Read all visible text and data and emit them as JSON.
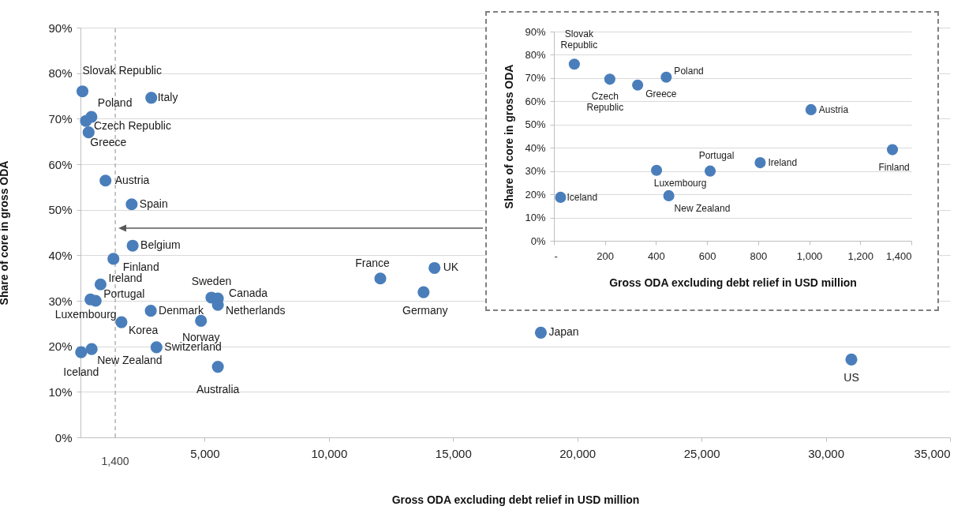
{
  "chart_data": [
    {
      "type": "scatter",
      "xlabel": "Gross ODA excluding debt relief in USD million",
      "ylabel": "Share of core in gross ODA",
      "xlim": [
        0,
        35000
      ],
      "xticks": [
        {
          "value": 5000,
          "label": "5,000"
        },
        {
          "value": 10000,
          "label": "10,000"
        },
        {
          "value": 15000,
          "label": "15,000"
        },
        {
          "value": 20000,
          "label": "20,000"
        },
        {
          "value": 25000,
          "label": "25,000"
        },
        {
          "value": 30000,
          "label": "30,000"
        },
        {
          "value": 35000,
          "label": "35,000"
        }
      ],
      "ylim": [
        0,
        90
      ],
      "yticks": [
        {
          "value": 0,
          "label": "0%"
        },
        {
          "value": 10,
          "label": "10%"
        },
        {
          "value": 20,
          "label": "20%"
        },
        {
          "value": 30,
          "label": "30%"
        },
        {
          "value": 40,
          "label": "40%"
        },
        {
          "value": 50,
          "label": "50%"
        },
        {
          "value": 60,
          "label": "60%"
        },
        {
          "value": 70,
          "label": "70%"
        },
        {
          "value": 80,
          "label": "80%"
        },
        {
          "value": 90,
          "label": "90%"
        }
      ],
      "grid": "y",
      "marker": "circle",
      "series": [
        {
          "color": "#4a7ebb",
          "x": [
            80,
            219,
            328,
            440,
            1007,
            1326,
            808,
            612,
            402,
            450,
            26,
            2850,
            2060,
            2100,
            1650,
            2830,
            3060,
            5270,
            5530,
            5530,
            4850,
            5530,
            12070,
            14250,
            13810,
            18530,
            31030
          ],
          "values": [
            76.0,
            69.5,
            67.0,
            70.4,
            56.4,
            39.2,
            33.6,
            30.0,
            30.3,
            19.4,
            18.7,
            74.6,
            51.2,
            42.1,
            25.3,
            27.8,
            19.8,
            30.7,
            30.5,
            29.1,
            25.6,
            15.5,
            34.9,
            37.2,
            31.9,
            23.0,
            17.1
          ]
        }
      ],
      "ref_lines": [
        {
          "axis": "x",
          "value": 1400,
          "label": "1,400",
          "line_style": "dashed",
          "color": "#a6a6a6"
        }
      ],
      "annotations": [
        {
          "text": "Slovak Republic",
          "x": 80,
          "y": 76.0
        },
        {
          "text": "Czech Republic",
          "x": 219,
          "y": 69.5
        },
        {
          "text": "Greece",
          "x": 328,
          "y": 67.0
        },
        {
          "text": "Poland",
          "x": 440,
          "y": 70.4
        },
        {
          "text": "Austria",
          "x": 1007,
          "y": 56.4
        },
        {
          "text": "Finland",
          "x": 1326,
          "y": 39.2
        },
        {
          "text": "Ireland",
          "x": 808,
          "y": 33.6
        },
        {
          "text": "Portugal",
          "x": 612,
          "y": 30.0
        },
        {
          "text": "Luxembourg",
          "x": 402,
          "y": 30.3
        },
        {
          "text": "New Zealand",
          "x": 450,
          "y": 19.4
        },
        {
          "text": "Iceland",
          "x": 26,
          "y": 18.7
        },
        {
          "text": "Italy",
          "x": 2850,
          "y": 74.6
        },
        {
          "text": "Spain",
          "x": 2060,
          "y": 51.2
        },
        {
          "text": "Belgium",
          "x": 2100,
          "y": 42.1
        },
        {
          "text": "Korea",
          "x": 1650,
          "y": 25.3
        },
        {
          "text": "Denmark",
          "x": 2830,
          "y": 27.8
        },
        {
          "text": "Switzerland",
          "x": 3060,
          "y": 19.8
        },
        {
          "text": "Sweden",
          "x": 5270,
          "y": 30.7
        },
        {
          "text": "Canada",
          "x": 5530,
          "y": 30.5
        },
        {
          "text": "Netherlands",
          "x": 5530,
          "y": 29.1
        },
        {
          "text": "Norway",
          "x": 4850,
          "y": 25.6
        },
        {
          "text": "Australia",
          "x": 5530,
          "y": 15.5
        },
        {
          "text": "France",
          "x": 12070,
          "y": 34.9
        },
        {
          "text": "UK",
          "x": 14250,
          "y": 37.2
        },
        {
          "text": "Germany",
          "x": 13810,
          "y": 31.9
        },
        {
          "text": "Japan",
          "x": 18530,
          "y": 23.0
        },
        {
          "text": "US",
          "x": 31030,
          "y": 17.1
        }
      ]
    },
    {
      "type": "scatter",
      "xlabel": "Gross ODA excluding debt relief in USD million",
      "ylabel": "Share of core in gross ODA",
      "xlim": [
        0,
        1400
      ],
      "xticks": [
        {
          "value": 0,
          "label": "-"
        },
        200,
        400,
        600,
        800,
        {
          "value": 1000,
          "label": "1,000"
        },
        {
          "value": 1200,
          "label": "1,200"
        },
        {
          "value": 1400,
          "label": "1,400"
        }
      ],
      "ylim": [
        0,
        90
      ],
      "yticks": [
        {
          "value": 0,
          "label": "0%"
        },
        {
          "value": 10,
          "label": "10%"
        },
        {
          "value": 20,
          "label": "20%"
        },
        {
          "value": 30,
          "label": "30%"
        },
        {
          "value": 40,
          "label": "40%"
        },
        {
          "value": 50,
          "label": "50%"
        },
        {
          "value": 60,
          "label": "60%"
        },
        {
          "value": 70,
          "label": "70%"
        },
        {
          "value": 80,
          "label": "80%"
        },
        {
          "value": 90,
          "label": "90%"
        }
      ],
      "grid": "y",
      "marker": "circle",
      "series": [
        {
          "color": "#4a7ebb",
          "x": [
            80,
            219,
            328,
            440,
            1007,
            1326,
            808,
            612,
            402,
            450,
            26
          ],
          "values": [
            76.0,
            69.5,
            67.0,
            70.4,
            56.4,
            39.2,
            33.6,
            30.0,
            30.3,
            19.4,
            18.7
          ]
        }
      ],
      "annotations": [
        {
          "text": "Slovak Republic",
          "x": 80,
          "y": 76.0
        },
        {
          "text": "Czech Republic",
          "x": 219,
          "y": 69.5
        },
        {
          "text": "Greece",
          "x": 328,
          "y": 67.0
        },
        {
          "text": "Poland",
          "x": 440,
          "y": 70.4
        },
        {
          "text": "Austria",
          "x": 1007,
          "y": 56.4
        },
        {
          "text": "Finland",
          "x": 1326,
          "y": 39.2
        },
        {
          "text": "Ireland",
          "x": 808,
          "y": 33.6
        },
        {
          "text": "Portugal",
          "x": 612,
          "y": 30.0
        },
        {
          "text": "Luxembourg",
          "x": 402,
          "y": 30.3
        },
        {
          "text": "New Zealand",
          "x": 450,
          "y": 19.4
        },
        {
          "text": "Iceland",
          "x": 26,
          "y": 18.7
        }
      ]
    }
  ]
}
